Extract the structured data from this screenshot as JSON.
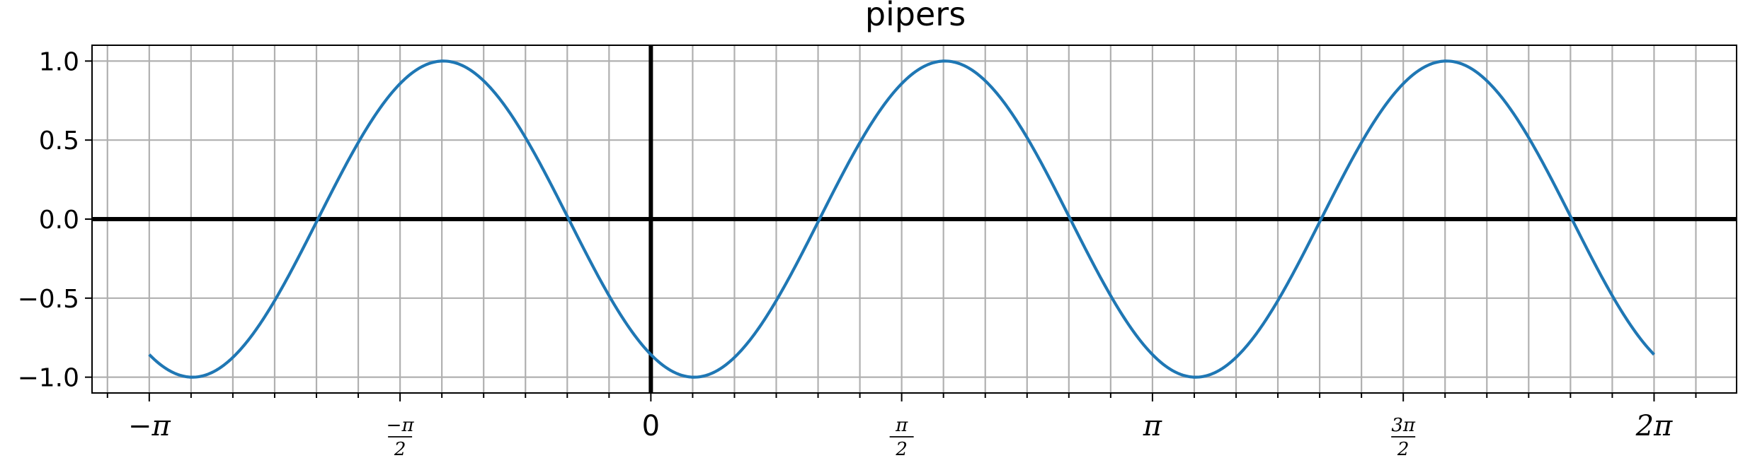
{
  "chart_data": {
    "type": "line",
    "title": "pipers",
    "xlabel": "",
    "ylabel": "",
    "xlim": [
      -3.5,
      6.8
    ],
    "ylim": [
      -1.1,
      1.1
    ],
    "grid": true,
    "axes_lines_at_zero": true,
    "line_color": "#1f77b4",
    "series": [
      {
        "function": "cos(2x + 2.6)",
        "x_range": [
          -3.14159,
          6.28319
        ]
      }
    ],
    "yticks": [
      {
        "value": 1.0,
        "label": "1.0"
      },
      {
        "value": 0.5,
        "label": "0.5"
      },
      {
        "value": 0.0,
        "label": "0.0"
      },
      {
        "value": -0.5,
        "label": "−0.5"
      },
      {
        "value": -1.0,
        "label": "−1.0"
      }
    ],
    "xticks": [
      {
        "value": -3.14159,
        "label": "−π"
      },
      {
        "value": -1.5708,
        "num": "−π",
        "den": "2"
      },
      {
        "value": 0,
        "label": "0"
      },
      {
        "value": 1.5708,
        "num": "π",
        "den": "2"
      },
      {
        "value": 3.14159,
        "label": "π"
      },
      {
        "value": 4.71239,
        "num": "3π",
        "den": "2"
      },
      {
        "value": 6.28319,
        "label": "2π"
      }
    ],
    "x_minor_step": 0.2618
  }
}
